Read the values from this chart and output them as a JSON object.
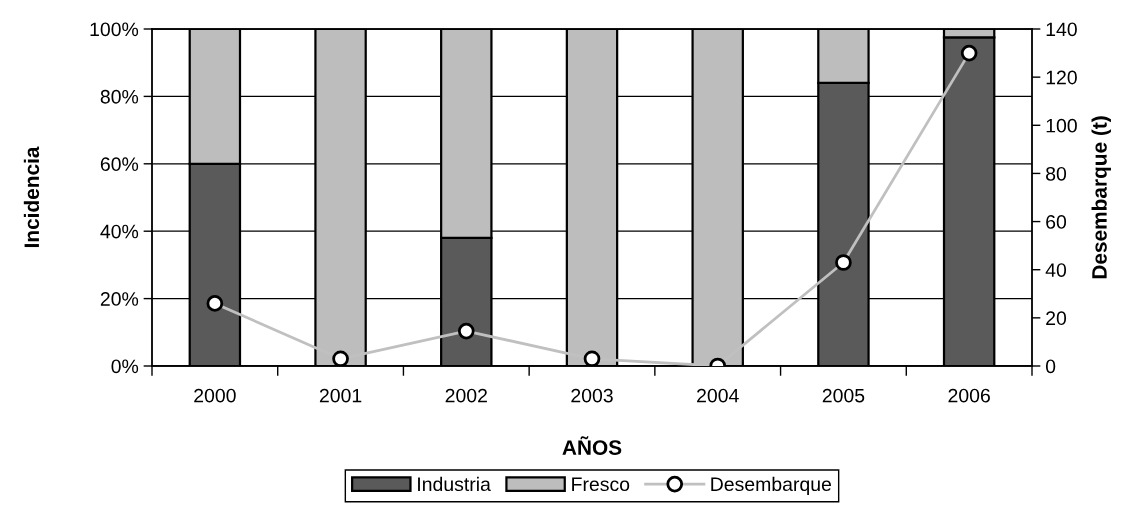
{
  "chart_data": {
    "type": "bar",
    "stacked": true,
    "categories": [
      "2000",
      "2001",
      "2002",
      "2003",
      "2004",
      "2005",
      "2006"
    ],
    "xlabel": "AÑOS",
    "ylabel": "Incidencia",
    "y2label": "Desembarque (t)",
    "ylim": [
      0,
      100
    ],
    "yticks": [
      {
        "value": 0,
        "label": "0%"
      },
      {
        "value": 20,
        "label": "20%"
      },
      {
        "value": 40,
        "label": "40%"
      },
      {
        "value": 60,
        "label": "60%"
      },
      {
        "value": 80,
        "label": "80%"
      },
      {
        "value": 100,
        "label": "100%"
      }
    ],
    "y2lim": [
      0,
      140
    ],
    "y2ticks": [
      0,
      20,
      40,
      60,
      80,
      100,
      120,
      140
    ],
    "grid": "y",
    "legend": "bottom",
    "series": [
      {
        "name": "Industria",
        "color": "#5a5a5a",
        "values": [
          60,
          0,
          38,
          0,
          0,
          84,
          97.5
        ]
      },
      {
        "name": "Fresco",
        "color": "#bdbdbd",
        "values": [
          40,
          100,
          62,
          100,
          100,
          16,
          2.5
        ]
      },
      {
        "name": "Desembarque",
        "type": "line",
        "axis": "y2",
        "color": "#c0c0c0",
        "marker": "circle",
        "line_style": "solid",
        "values": [
          26,
          3,
          14.5,
          3,
          0,
          43,
          130
        ]
      }
    ]
  }
}
